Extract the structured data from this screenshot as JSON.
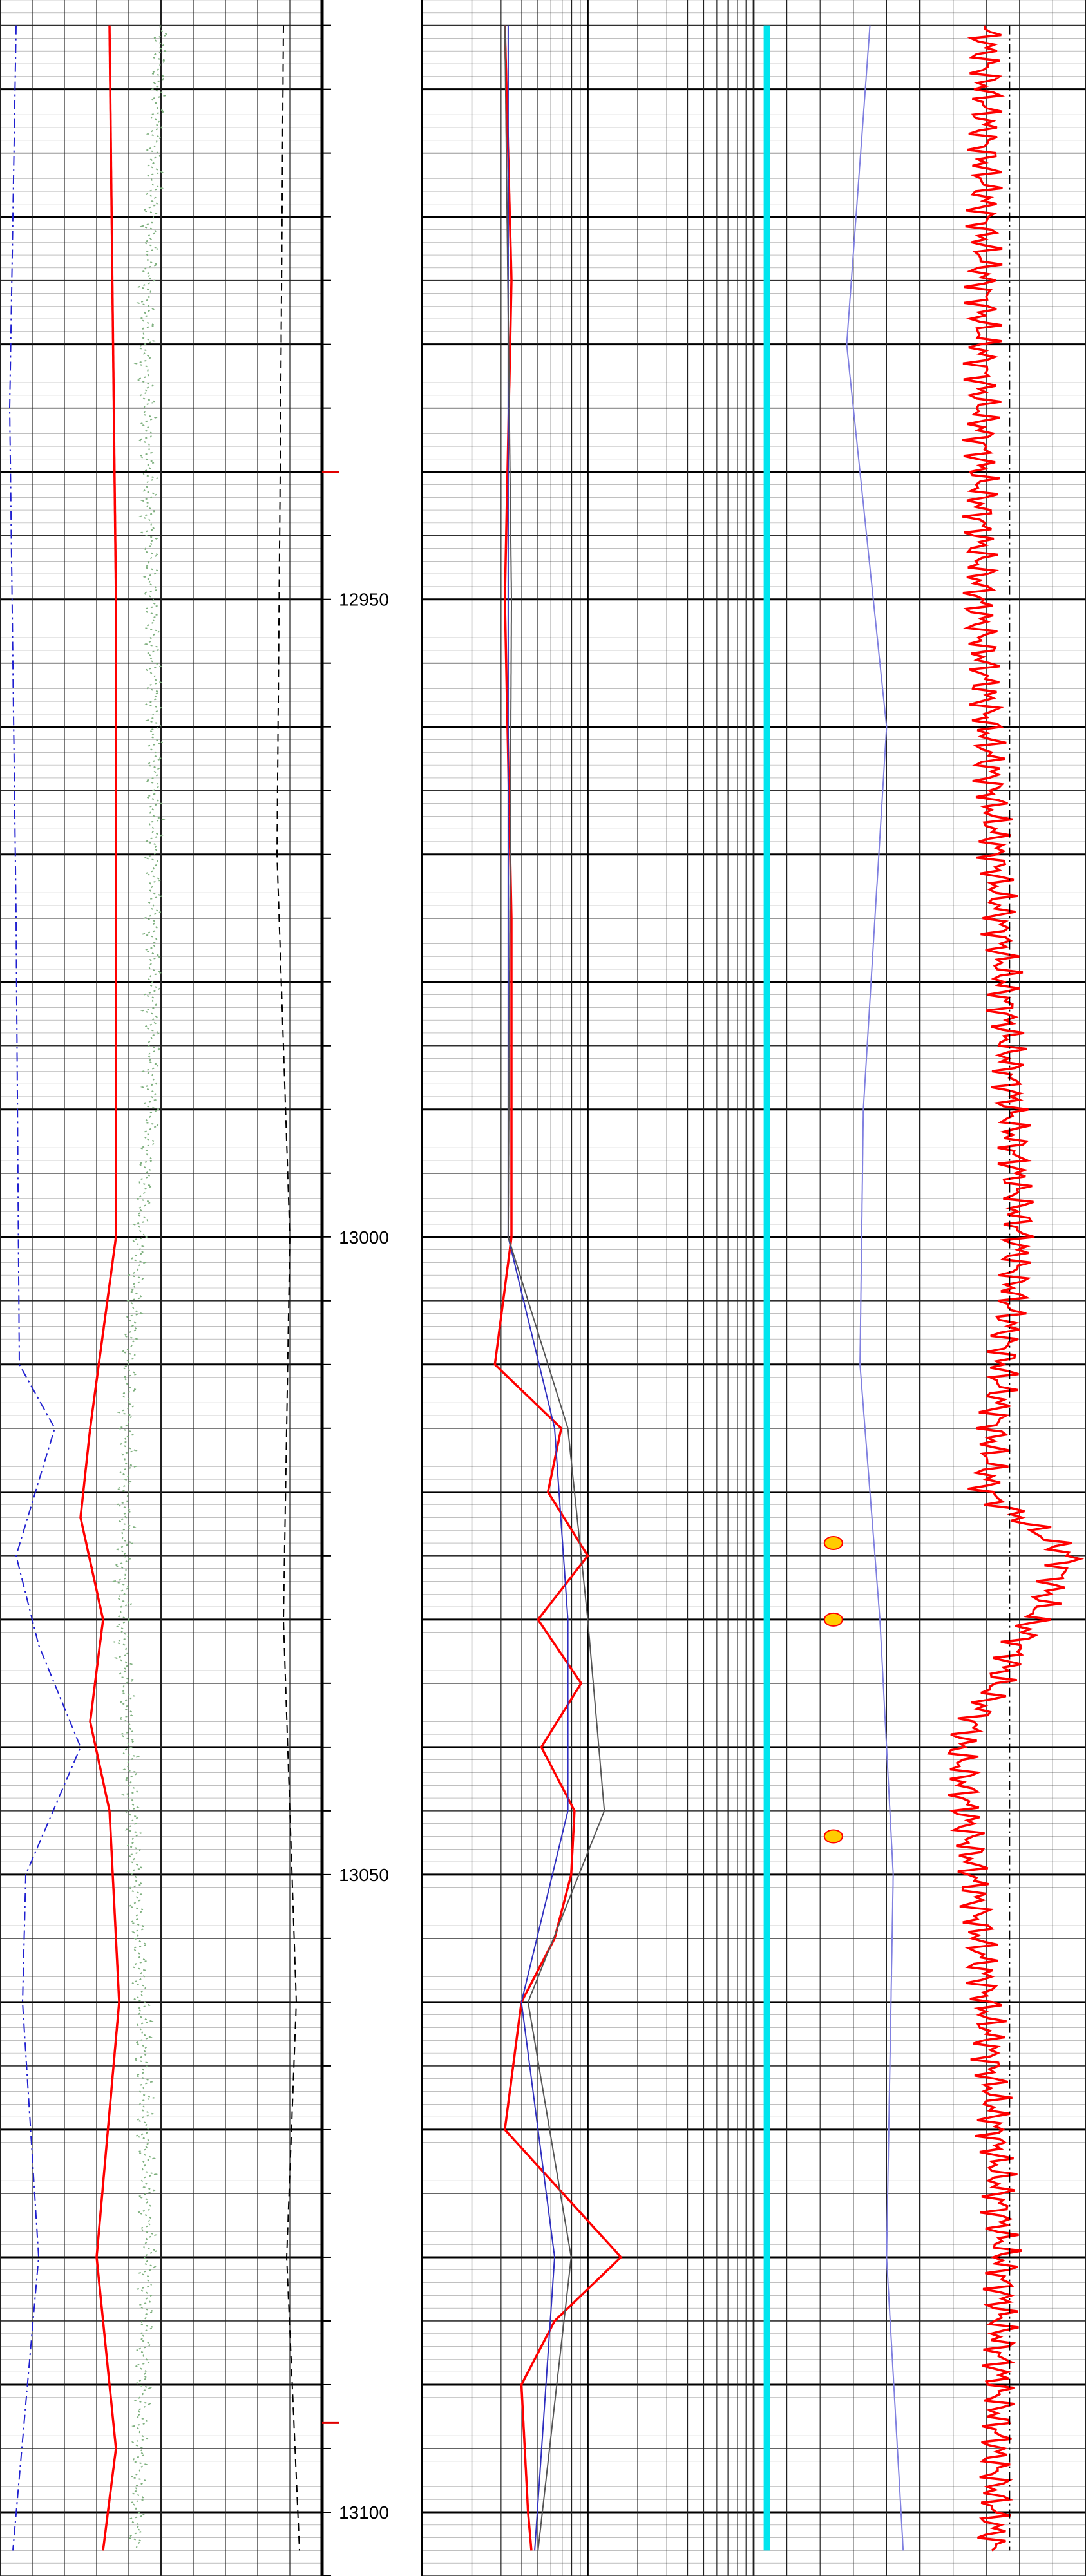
{
  "chart_data": {
    "type": "line",
    "title": "",
    "depth_axis": {
      "label": "",
      "range": [
        12903,
        13105
      ],
      "major_ticks": [
        {
          "depth": 12950,
          "label": "12950"
        },
        {
          "depth": 13000,
          "label": "13000"
        },
        {
          "depth": 13050,
          "label": "13050"
        },
        {
          "depth": 13100,
          "label": "13100"
        }
      ],
      "direction": "increasing downward"
    },
    "markers": [
      {
        "depth": 12940,
        "color": "#e00000"
      },
      {
        "depth": 13093,
        "color": "#e00000"
      }
    ],
    "tracks": [
      {
        "name": "track-1",
        "scale": "linear",
        "series": [
          {
            "name": "",
            "color": "#2020d0",
            "style": "dashdot",
            "depths": [
              12905,
              12935,
              12975,
              13010,
              13015,
              13025,
              13032,
              13040,
              13050,
              13060,
              13080,
              13103
            ],
            "values": [
              0.05,
              0.03,
              0.05,
              0.06,
              0.17,
              0.05,
              0.12,
              0.25,
              0.08,
              0.07,
              0.12,
              0.04
            ]
          },
          {
            "name": "",
            "color": "#ff0000",
            "style": "solid",
            "depths": [
              12905,
              12950,
              13000,
              13015,
              13022,
              13030,
              13038,
              13045,
              13060,
              13080,
              13095,
              13103
            ],
            "values": [
              0.34,
              0.36,
              0.36,
              0.28,
              0.25,
              0.32,
              0.28,
              0.34,
              0.37,
              0.3,
              0.36,
              0.32
            ]
          },
          {
            "name": "",
            "color": "#7fb07f",
            "style": "dotted",
            "depths": [
              12905,
              12930,
              12960,
              12990,
              13010,
              13030,
              13060,
              13080,
              13103
            ],
            "values": [
              0.5,
              0.45,
              0.48,
              0.47,
              0.4,
              0.38,
              0.44,
              0.46,
              0.42
            ]
          },
          {
            "name": "",
            "color": "#000000",
            "style": "dashed",
            "depths": [
              12905,
              12940,
              12970,
              13000,
              13030,
              13060,
              13080,
              13103
            ],
            "values": [
              0.88,
              0.87,
              0.86,
              0.9,
              0.88,
              0.92,
              0.89,
              0.93
            ]
          }
        ]
      },
      {
        "name": "track-2",
        "scale": "log",
        "series": [
          {
            "name": "",
            "color": "#ff0000",
            "style": "solid",
            "depths": [
              12905,
              12925,
              12950,
              12975,
              13000,
              13010,
              13015,
              13020,
              13025,
              13030,
              13035,
              13040,
              13045,
              13050,
              13055,
              13060,
              13070,
              13080,
              13085,
              13090,
              13100,
              13103
            ],
            "values": [
              0.25,
              0.27,
              0.25,
              0.27,
              0.27,
              0.22,
              0.42,
              0.38,
              0.5,
              0.35,
              0.48,
              0.36,
              0.46,
              0.45,
              0.4,
              0.3,
              0.25,
              0.6,
              0.4,
              0.3,
              0.32,
              0.33
            ]
          },
          {
            "name": "",
            "color": "#3030c0",
            "style": "solid",
            "depths": [
              12905,
              12950,
              13000,
              13015,
              13030,
              13045,
              13060,
              13080,
              13103
            ],
            "values": [
              0.26,
              0.26,
              0.26,
              0.4,
              0.44,
              0.44,
              0.3,
              0.4,
              0.34
            ]
          },
          {
            "name": "",
            "color": "#555555",
            "style": "solid",
            "depths": [
              12905,
              12950,
              13000,
              13015,
              13030,
              13045,
              13060,
              13080,
              13103
            ],
            "values": [
              0.25,
              0.27,
              0.26,
              0.44,
              0.5,
              0.55,
              0.32,
              0.45,
              0.35
            ]
          }
        ]
      },
      {
        "name": "track-3",
        "scale": "linear",
        "series": [
          {
            "name": "",
            "color": "#00e5ee",
            "style": "solid",
            "depths": [
              12905,
              13103
            ],
            "values": [
              0.04,
              0.04
            ]
          },
          {
            "name": "",
            "color": "#8080e0",
            "style": "solid",
            "depths": [
              12905,
              12930,
              12960,
              12990,
              13010,
              13030,
              13050,
              13080,
              13103
            ],
            "values": [
              0.35,
              0.28,
              0.4,
              0.33,
              0.32,
              0.38,
              0.42,
              0.4,
              0.45
            ]
          },
          {
            "name": "",
            "color": "#ff0000",
            "style": "solid",
            "depths": [
              12905,
              12950,
              13000,
              13020,
              13025,
              13040,
              13060,
              13080,
              13103
            ],
            "values": [
              0.7,
              0.68,
              0.8,
              0.7,
              0.95,
              0.62,
              0.7,
              0.75,
              0.72
            ]
          },
          {
            "name": "",
            "color": "#000000",
            "style": "dashdot",
            "depths": [
              12905,
              13103
            ],
            "values": [
              0.77,
              0.77
            ]
          }
        ],
        "highlights": [
          {
            "depth": 13024,
            "color": "#ffcc00"
          },
          {
            "depth": 13030,
            "color": "#ffcc00"
          },
          {
            "depth": 13047,
            "color": "#ffcc00"
          }
        ]
      }
    ]
  }
}
